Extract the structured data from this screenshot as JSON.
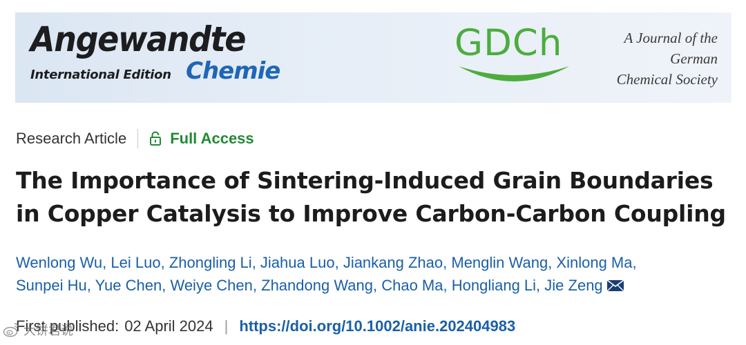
{
  "banner": {
    "journal_name_main": "Angewandte",
    "journal_edition": "International Edition",
    "journal_name_sub": "Chemie",
    "society_logo": "GDCh",
    "society_tagline": [
      "A Journal of the",
      "German",
      "Chemical Society"
    ],
    "colors": {
      "chemie_blue": "#1f66b6",
      "gdch_green": "#4cad3c",
      "banner_bg": "#dbe6f3"
    }
  },
  "meta": {
    "article_type": "Research Article",
    "access_icon": "lock-open-icon",
    "access_label": "Full Access"
  },
  "title_lines": [
    "The Importance of Sintering-Induced Grain Boundaries",
    "in Copper Catalysis to Improve Carbon-Carbon Coupling"
  ],
  "authors": {
    "line1": [
      "Wenlong Wu",
      "Lei Luo",
      "Zhongling Li",
      "Jiahua Luo",
      "Jiankang Zhao",
      "Menglin Wang",
      "Xinlong Ma"
    ],
    "line2": [
      "Sunpei Hu",
      "Yue Chen",
      "Weiye Chen",
      "Zhandong Wang",
      "Chao Ma",
      "Hongliang Li",
      "Jie Zeng"
    ],
    "corresponding_icon": "envelope-icon"
  },
  "publication": {
    "label": "First published:",
    "date": "02 April 2024",
    "separator": "|",
    "doi": "https://doi.org/10.1002/anie.202404983"
  },
  "watermark": {
    "icon": "weibo-icon",
    "text": "大饼君说"
  }
}
